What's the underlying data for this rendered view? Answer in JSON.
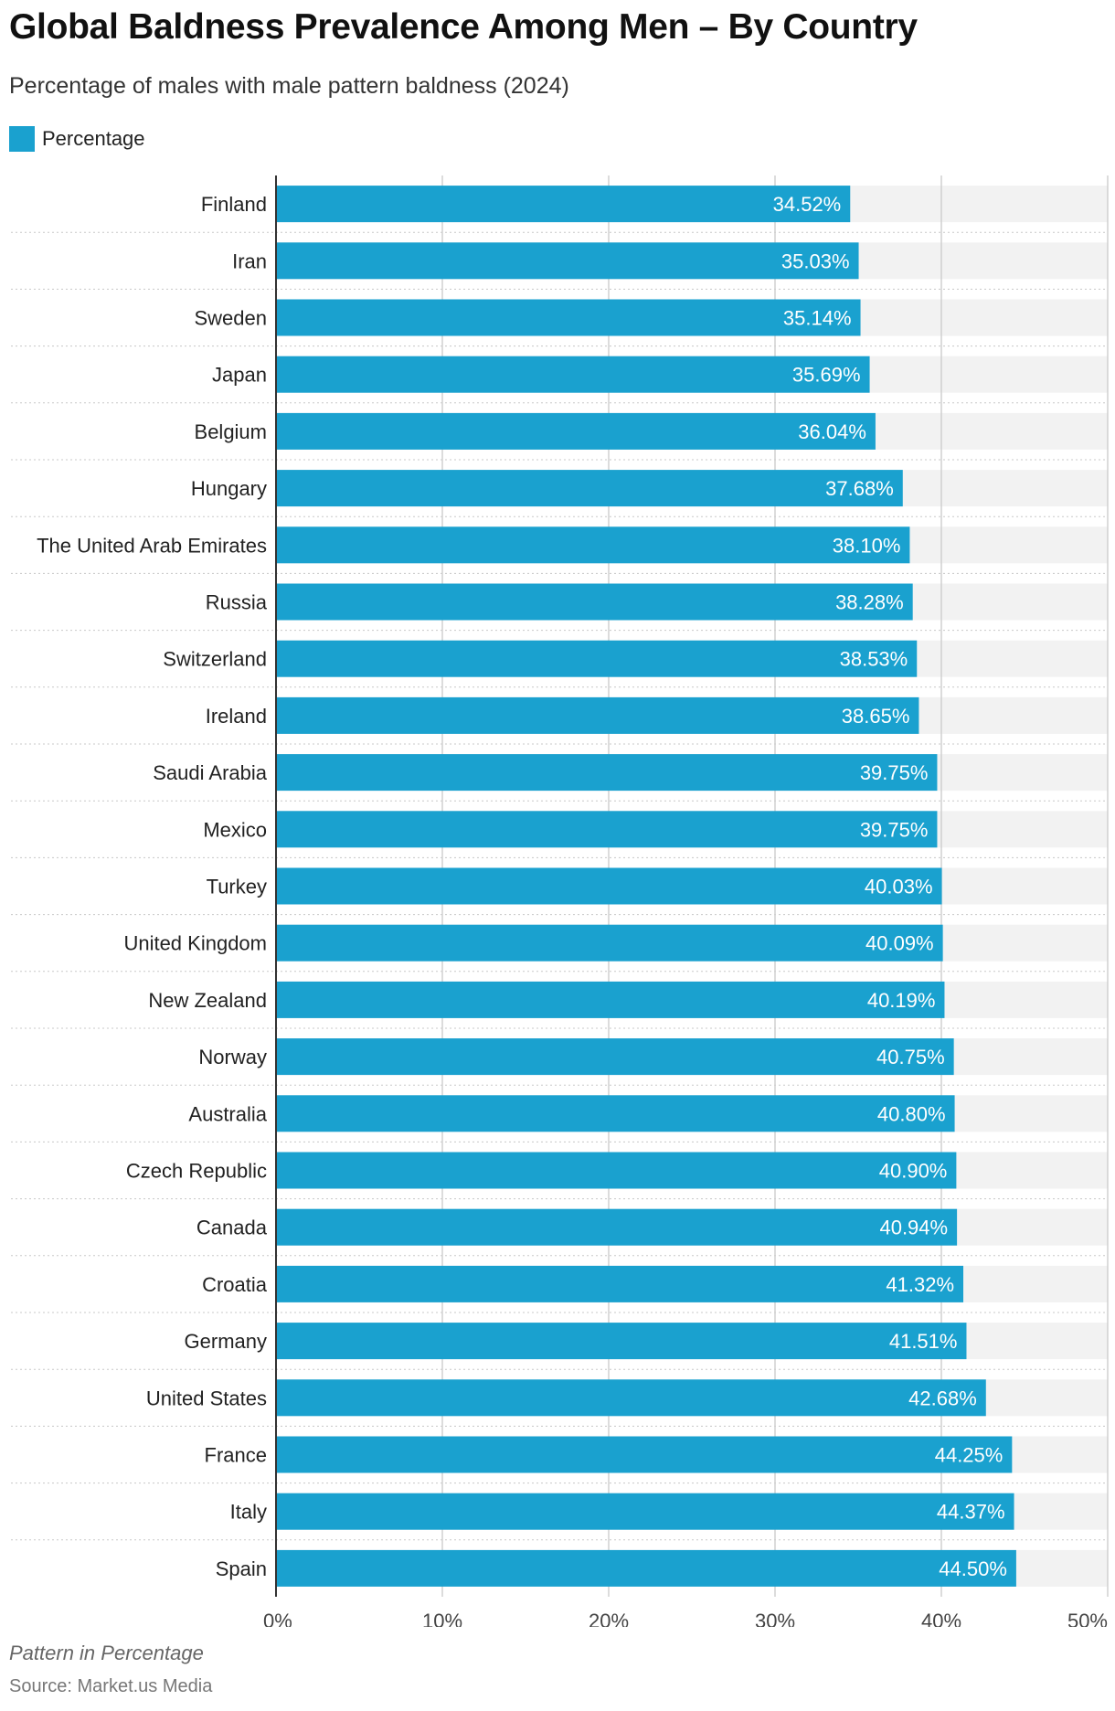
{
  "title": "Global Baldness Prevalence Among Men – By Country",
  "subtitle": "Percentage of males with male pattern baldness (2024)",
  "legend": {
    "label": "Percentage",
    "color": "#1aa1cf"
  },
  "footnote": "Pattern in Percentage",
  "source": {
    "prefix": "Source:",
    "name": "Market.us Media"
  },
  "chart_data": {
    "type": "bar",
    "orientation": "horizontal",
    "xlim": [
      0,
      50
    ],
    "ticks": [
      "0%",
      "10%",
      "20%",
      "30%",
      "40%",
      "50%"
    ],
    "grid": true,
    "legend_position": "top-left",
    "bar_color": "#1aa1cf",
    "categories": [
      "Finland",
      "Iran",
      "Sweden",
      "Japan",
      "Belgium",
      "Hungary",
      "The United Arab Emirates",
      "Russia",
      "Switzerland",
      "Ireland",
      "Saudi Arabia",
      "Mexico",
      "Turkey",
      "United Kingdom",
      "New Zealand",
      "Norway",
      "Australia",
      "Czech Republic",
      "Canada",
      "Croatia",
      "Germany",
      "United States",
      "France",
      "Italy",
      "Spain"
    ],
    "series": [
      {
        "name": "Percentage",
        "values": [
          34.52,
          35.03,
          35.14,
          35.69,
          36.04,
          37.68,
          38.1,
          38.28,
          38.53,
          38.65,
          39.75,
          39.75,
          40.03,
          40.09,
          40.19,
          40.75,
          40.8,
          40.9,
          40.94,
          41.32,
          41.51,
          42.68,
          44.25,
          44.37,
          44.5
        ],
        "labels": [
          "34.52%",
          "35.03%",
          "35.14%",
          "35.69%",
          "36.04%",
          "37.68%",
          "38.10%",
          "38.28%",
          "38.53%",
          "38.65%",
          "39.75%",
          "39.75%",
          "40.03%",
          "40.09%",
          "40.19%",
          "40.75%",
          "40.80%",
          "40.90%",
          "40.94%",
          "41.32%",
          "41.51%",
          "42.68%",
          "44.25%",
          "44.37%",
          "44.50%"
        ]
      }
    ]
  }
}
